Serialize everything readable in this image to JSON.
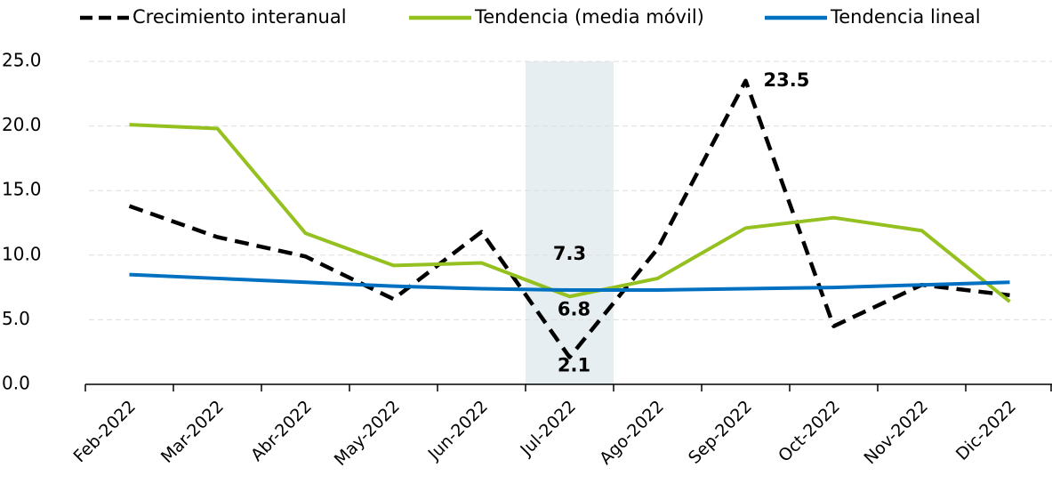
{
  "chart_data": {
    "type": "line",
    "categories": [
      "Feb-2022",
      "Mar-2022",
      "Abr-2022",
      "May-2022",
      "Jun-2022",
      "Jul-2022",
      "Ago-2022",
      "Sep-2022",
      "Oct-2022",
      "Nov-2022",
      "Dic-2022"
    ],
    "series": [
      {
        "name": "Crecimiento interanual",
        "color": "#000000",
        "dashed": true,
        "values": [
          13.8,
          11.4,
          9.9,
          6.6,
          11.8,
          2.1,
          10.5,
          23.5,
          4.5,
          7.7,
          6.9
        ]
      },
      {
        "name": "Tendencia (media móvil)",
        "color": "#94c11f",
        "values": [
          20.1,
          19.8,
          11.7,
          9.2,
          9.4,
          6.8,
          8.2,
          12.1,
          12.9,
          11.9,
          6.4
        ]
      },
      {
        "name": "Tendencia lineal",
        "color": "#0070c0",
        "values": [
          8.5,
          8.2,
          7.9,
          7.6,
          7.4,
          7.3,
          7.3,
          7.4,
          7.5,
          7.7,
          7.9
        ]
      }
    ],
    "ylim": [
      0,
      25
    ],
    "yticks": [
      {
        "value": 0,
        "label": "0.0"
      },
      {
        "value": 5,
        "label": "5.0"
      },
      {
        "value": 10,
        "label": "10.0"
      },
      {
        "value": 15,
        "label": "15.0"
      },
      {
        "value": 20,
        "label": "20.0"
      },
      {
        "value": 25,
        "label": "25.0"
      }
    ],
    "grid": true,
    "legend": "top"
  }
}
